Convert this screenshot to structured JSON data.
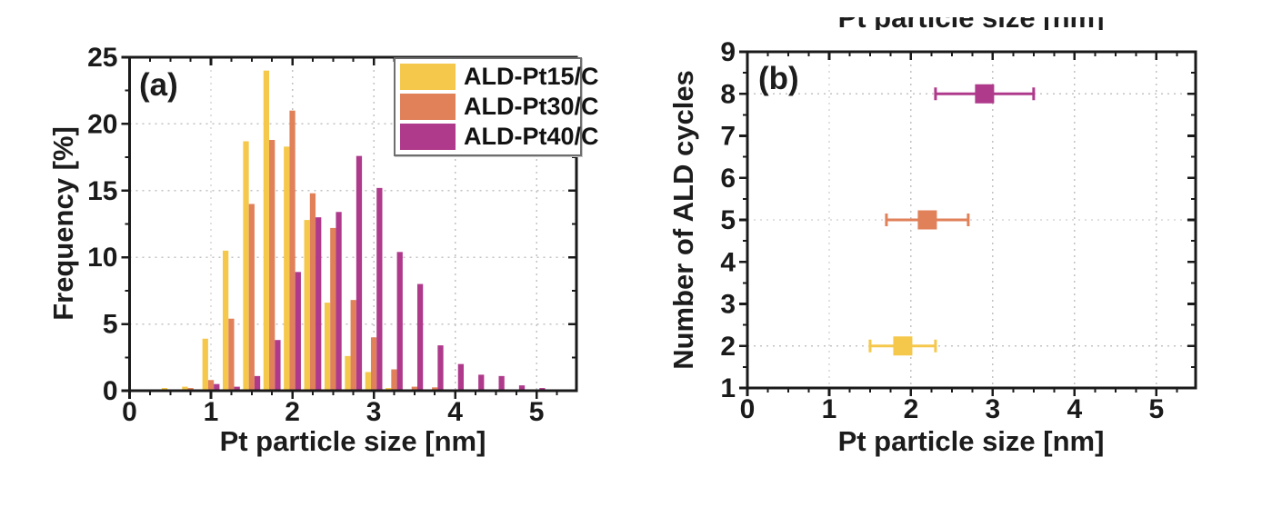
{
  "figure": {
    "background": "#ffffff",
    "panel_a": {
      "tag": "(a)",
      "xlabel": "Pt particle size [nm]",
      "ylabel": "Frequency [%]"
    },
    "panel_b": {
      "tag": "(b)",
      "xlabel": "Pt particle size [nm]",
      "ylabel": "Number of ALD cycles",
      "top_title_clipped": "Pt particle size [nm]"
    }
  },
  "chart_data": [
    {
      "type": "bar",
      "panel": "a",
      "title": "",
      "xlabel": "Pt particle size [nm]",
      "ylabel": "Frequency [%]",
      "bin_centers": [
        0.5,
        0.75,
        1.0,
        1.25,
        1.5,
        1.75,
        2.0,
        2.25,
        2.5,
        2.75,
        3.0,
        3.25,
        3.5,
        3.75,
        4.0,
        4.25,
        4.5,
        4.75,
        5.0
      ],
      "bin_width": 0.25,
      "bar_width_data": 0.07,
      "series": [
        {
          "name": "ALD-Pt15/C",
          "color": "#F5C84B",
          "values": [
            0.2,
            0.3,
            3.9,
            10.5,
            18.7,
            24.0,
            18.3,
            12.8,
            6.6,
            2.6,
            1.4,
            0.2,
            0,
            0,
            0,
            0,
            0,
            0,
            0
          ]
        },
        {
          "name": "ALD-Pt30/C",
          "color": "#E0815A",
          "values": [
            0,
            0.2,
            0.8,
            5.4,
            14.0,
            18.8,
            21.0,
            14.8,
            12.2,
            6.8,
            4.0,
            1.6,
            0.3,
            0.25,
            0,
            0,
            0,
            0,
            0
          ]
        },
        {
          "name": "ALD-Pt40/C",
          "color": "#AF3A8C",
          "values": [
            0,
            0,
            0.5,
            0.3,
            1.1,
            3.8,
            8.9,
            13.0,
            13.4,
            17.6,
            15.2,
            10.4,
            8.0,
            3.4,
            2.0,
            1.2,
            1.1,
            0.4,
            0.2
          ]
        }
      ],
      "xlim": [
        0,
        5.49
      ],
      "ylim": [
        0,
        25
      ],
      "xticks": [
        0,
        1,
        2,
        3,
        4,
        5
      ],
      "yticks": [
        0,
        5,
        10,
        15,
        20,
        25
      ],
      "x_minor_step": 0.25,
      "y_minor_step": 2.5,
      "grid_x": [
        1,
        2,
        3,
        4,
        5
      ],
      "grid_y": [
        5,
        10,
        15,
        20
      ],
      "grid_style": "dashed",
      "legend_position": "top-right"
    },
    {
      "type": "scatter",
      "panel": "b",
      "title": "",
      "xlabel": "Pt particle size [nm]",
      "ylabel": "Number of ALD cycles",
      "points": [
        {
          "name": "ALD-Pt15/C",
          "color": "#F5C84B",
          "x": 1.9,
          "y": 2,
          "xerr_minus": 0.4,
          "xerr_plus": 0.4
        },
        {
          "name": "ALD-Pt30/C",
          "color": "#E0815A",
          "x": 2.2,
          "y": 5,
          "xerr_minus": 0.5,
          "xerr_plus": 0.5
        },
        {
          "name": "ALD-Pt40/C",
          "color": "#AF3A8C",
          "x": 2.9,
          "y": 8,
          "xerr_minus": 0.6,
          "xerr_plus": 0.6
        }
      ],
      "marker": "square",
      "xlim": [
        0,
        5.48
      ],
      "ylim": [
        1,
        9
      ],
      "xticks": [
        0,
        1,
        2,
        3,
        4,
        5
      ],
      "yticks": [
        1,
        2,
        3,
        4,
        5,
        6,
        7,
        8,
        9
      ],
      "x_minor_step": 0.25,
      "y_minor_step": 0.5,
      "grid_x": [
        1,
        2,
        3,
        4,
        5
      ],
      "grid_y": [
        2,
        5,
        8
      ],
      "grid_style": "dashed"
    }
  ]
}
